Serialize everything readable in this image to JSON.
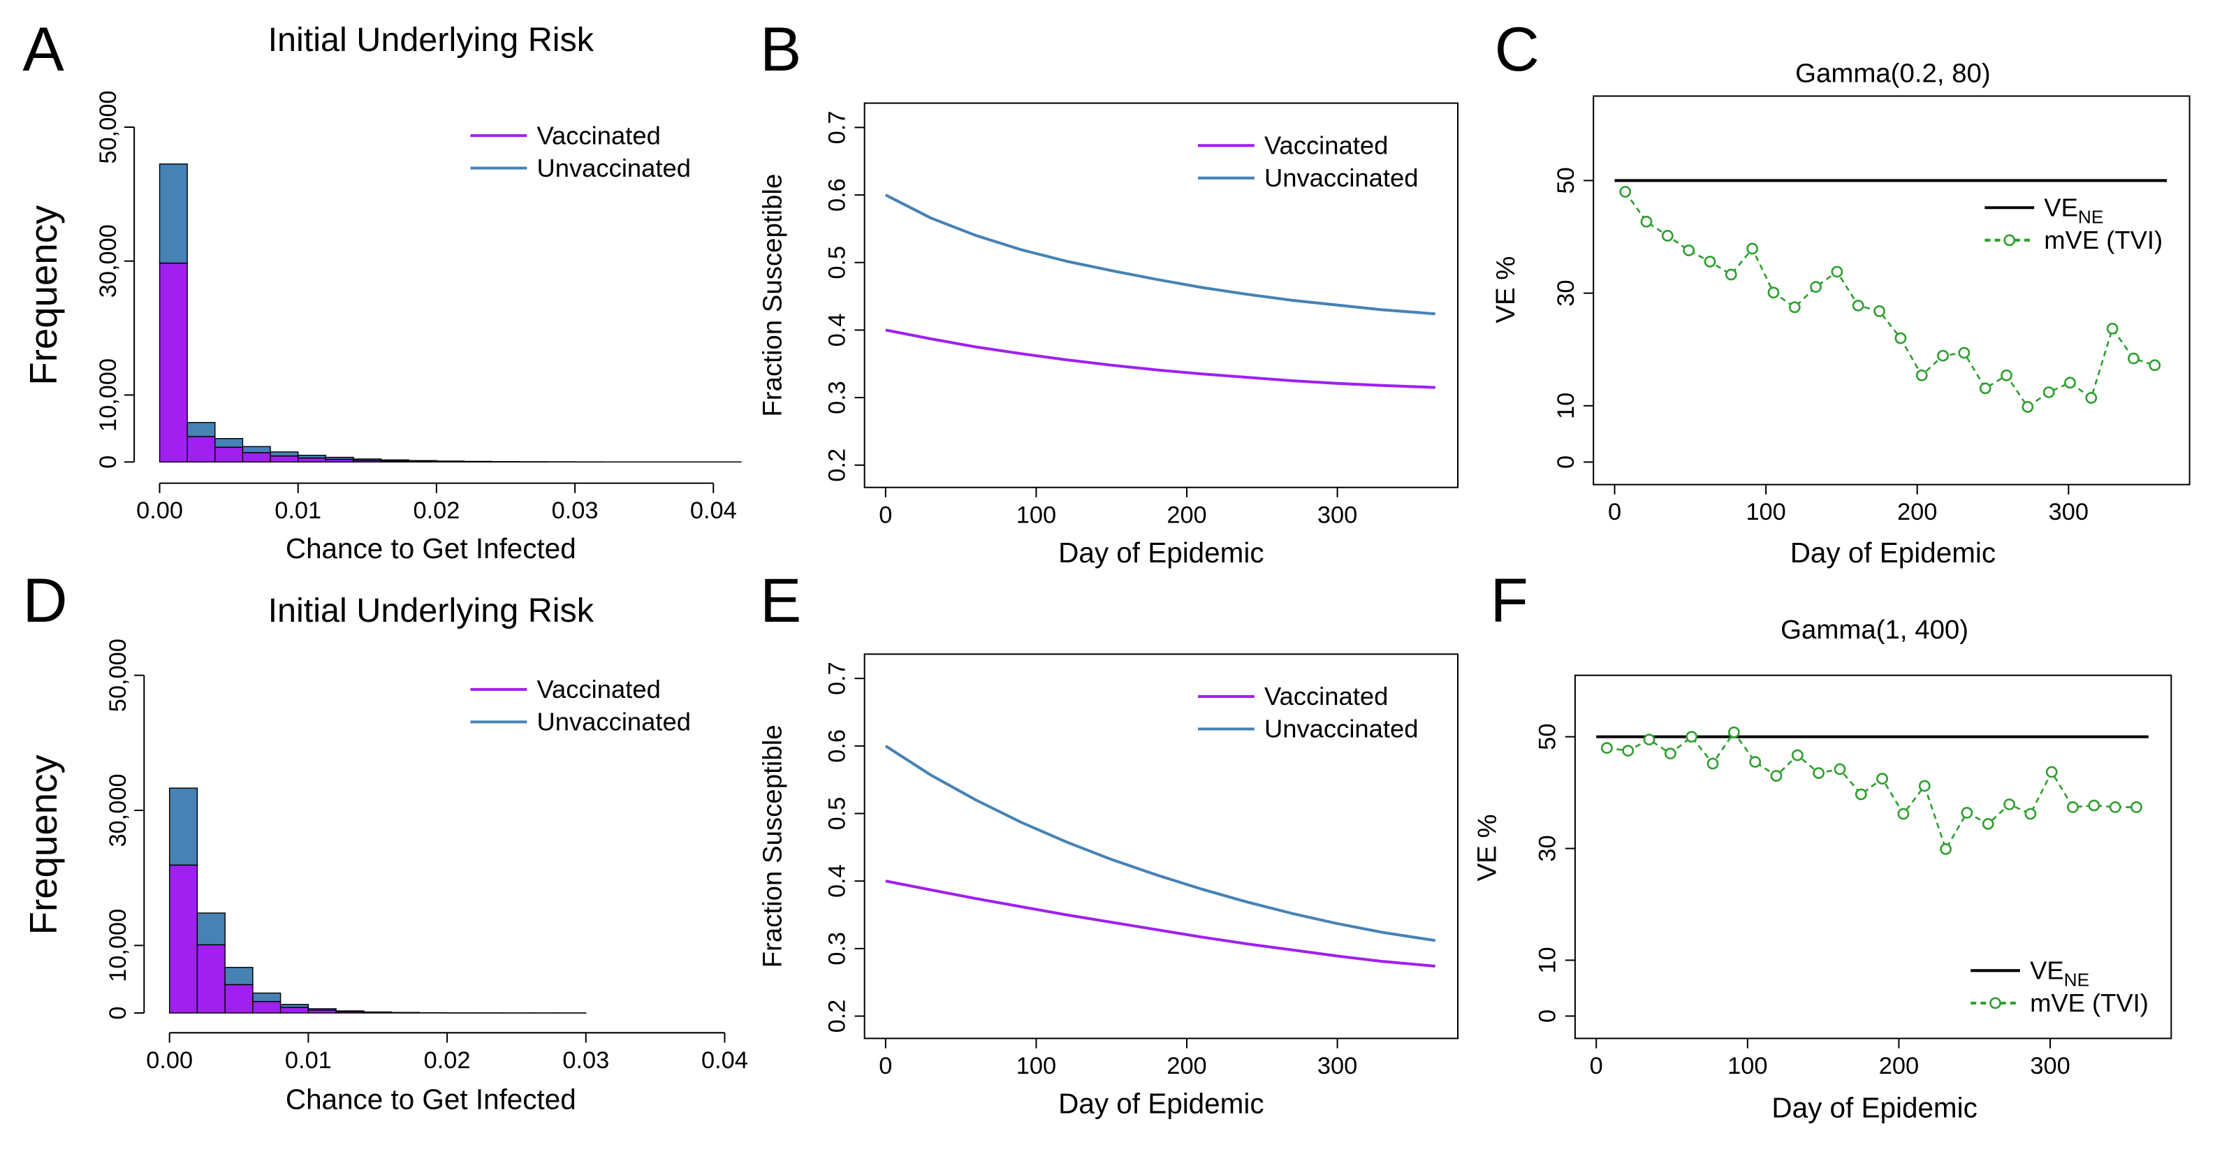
{
  "chart_data": [
    {
      "type": "histogram",
      "panel": "A",
      "title": "Initial Underlying Risk",
      "xlabel": "Chance to Get Infected",
      "ylabel": "Frequency",
      "bins": [
        0,
        0.002,
        0.004,
        0.006,
        0.008,
        0.01,
        0.012,
        0.014,
        0.016,
        0.018,
        0.02,
        0.022,
        0.024,
        0.026,
        0.028,
        0.03,
        0.032,
        0.034,
        0.036,
        0.038,
        0.04,
        0.042
      ],
      "series": [
        {
          "name": "Vaccinated",
          "color": "#a020f0",
          "values": [
            29700,
            3800,
            2200,
            1400,
            900,
            600,
            400,
            250,
            180,
            120,
            80,
            50,
            30,
            20,
            15,
            10,
            5,
            3,
            2,
            1,
            1
          ]
        },
        {
          "name": "Unvaccinated",
          "color": "#4682b4",
          "values": [
            14800,
            2100,
            1300,
            900,
            600,
            400,
            300,
            200,
            130,
            90,
            60,
            40,
            25,
            15,
            10,
            8,
            5,
            3,
            2,
            1,
            1
          ]
        }
      ],
      "stacked": true,
      "xlim": [
        0,
        0.04
      ],
      "xticks": [
        {
          "value": 0,
          "label": "0.00"
        },
        0.01,
        0.02,
        0.03,
        0.04
      ],
      "ylim": [
        0,
        50000
      ],
      "yticks": [
        0,
        {
          "value": 10000,
          "label": "10,000"
        },
        {
          "value": 30000,
          "label": "30,000"
        },
        {
          "value": 50000,
          "label": "50,000"
        }
      ],
      "legend": "top-right"
    },
    {
      "type": "line",
      "panel": "B",
      "xlabel": "Day of Epidemic",
      "ylabel": "Fraction Susceptible",
      "x": [
        0,
        30,
        60,
        90,
        120,
        150,
        180,
        210,
        240,
        270,
        300,
        330,
        365
      ],
      "series": [
        {
          "name": "Vaccinated",
          "color": "#a020f0",
          "values": [
            0.4,
            0.387,
            0.375,
            0.365,
            0.356,
            0.348,
            0.341,
            0.335,
            0.33,
            0.325,
            0.321,
            0.318,
            0.315
          ]
        },
        {
          "name": "Unvaccinated",
          "color": "#4682b4",
          "values": [
            0.6,
            0.566,
            0.54,
            0.519,
            0.502,
            0.488,
            0.475,
            0.463,
            0.453,
            0.444,
            0.437,
            0.43,
            0.424
          ]
        }
      ],
      "xlim": [
        -14,
        380
      ],
      "xticks": [
        0,
        100,
        200,
        300
      ],
      "ylim": [
        0.167,
        0.736
      ],
      "yticks": [
        0.2,
        0.3,
        0.4,
        0.5,
        0.6,
        0.7
      ],
      "legend": "top-right"
    },
    {
      "type": "line",
      "panel": "C",
      "title": "Gamma(0.2, 80)",
      "xlabel": "Day of Epidemic",
      "ylabel": "VE %",
      "series": [
        {
          "name": "VE",
          "subscript": "NE",
          "color": "#000000",
          "x": [
            0,
            365
          ],
          "values": [
            50,
            50
          ]
        },
        {
          "name": "mVE (TVI)",
          "color": "#2e9e2e",
          "marker": "circle",
          "dashed": true,
          "x": [
            7,
            21,
            35,
            49,
            63,
            77,
            91,
            105,
            119,
            133,
            147,
            161,
            175,
            189,
            203,
            217,
            231,
            245,
            259,
            273,
            287,
            301,
            315,
            329,
            343,
            357
          ],
          "values": [
            48.0,
            42.7,
            40.2,
            37.6,
            35.6,
            33.3,
            37.9,
            30.1,
            27.5,
            31.1,
            33.8,
            27.8,
            26.8,
            22.0,
            15.4,
            18.9,
            19.4,
            13.1,
            15.4,
            9.8,
            12.4,
            14.1,
            11.4,
            23.7,
            18.4,
            17.2
          ]
        }
      ],
      "xlim": [
        -14,
        380
      ],
      "xticks": [
        0,
        100,
        200,
        300
      ],
      "ylim": [
        -4,
        65
      ],
      "yticks": [
        0,
        10,
        30,
        50
      ],
      "legend": "top-right"
    },
    {
      "type": "histogram",
      "panel": "D",
      "title": "Initial Underlying Risk",
      "xlabel": "Chance to Get Infected",
      "ylabel": "Frequency",
      "bins": [
        0,
        0.002,
        0.004,
        0.006,
        0.008,
        0.01,
        0.012,
        0.014,
        0.016,
        0.018,
        0.02,
        0.022,
        0.024,
        0.026,
        0.028,
        0.03
      ],
      "series": [
        {
          "name": "Vaccinated",
          "color": "#a020f0",
          "values": [
            21900,
            10100,
            4200,
            1700,
            840,
            420,
            200,
            100,
            50,
            25,
            12,
            6,
            3,
            2,
            1
          ]
        },
        {
          "name": "Unvaccinated",
          "color": "#4682b4",
          "values": [
            11400,
            4700,
            2550,
            1250,
            430,
            210,
            110,
            50,
            25,
            12,
            6,
            3,
            2,
            1,
            1
          ]
        }
      ],
      "stacked": true,
      "xlim": [
        0,
        0.04
      ],
      "xticks": [
        {
          "value": 0,
          "label": "0.00"
        },
        0.01,
        0.02,
        0.03,
        0.04
      ],
      "ylim": [
        0,
        50000
      ],
      "yticks": [
        0,
        {
          "value": 10000,
          "label": "10,000"
        },
        {
          "value": 30000,
          "label": "30,000"
        },
        {
          "value": 50000,
          "label": "50,000"
        }
      ],
      "legend": "top-right"
    },
    {
      "type": "line",
      "panel": "E",
      "xlabel": "Day of Epidemic",
      "ylabel": "Fraction Susceptible",
      "x": [
        0,
        30,
        60,
        90,
        120,
        150,
        180,
        210,
        240,
        270,
        300,
        330,
        365
      ],
      "series": [
        {
          "name": "Vaccinated",
          "color": "#a020f0",
          "values": [
            0.4,
            0.387,
            0.374,
            0.362,
            0.35,
            0.339,
            0.328,
            0.317,
            0.307,
            0.298,
            0.289,
            0.281,
            0.274
          ]
        },
        {
          "name": "Unvaccinated",
          "color": "#4682b4",
          "values": [
            0.6,
            0.557,
            0.52,
            0.487,
            0.458,
            0.432,
            0.409,
            0.388,
            0.369,
            0.352,
            0.337,
            0.324,
            0.312
          ]
        }
      ],
      "xlim": [
        -14,
        380
      ],
      "xticks": [
        0,
        100,
        200,
        300
      ],
      "ylim": [
        0.167,
        0.736
      ],
      "yticks": [
        0.2,
        0.3,
        0.4,
        0.5,
        0.6,
        0.7
      ],
      "legend": "top-right"
    },
    {
      "type": "line",
      "panel": "F",
      "title": "Gamma(1, 400)",
      "xlabel": "Day of Epidemic",
      "ylabel": "VE %",
      "series": [
        {
          "name": "VE",
          "subscript": "NE",
          "color": "#000000",
          "x": [
            0,
            365
          ],
          "values": [
            50,
            50
          ]
        },
        {
          "name": "mVE (TVI)",
          "color": "#2e9e2e",
          "marker": "circle",
          "dashed": true,
          "x": [
            7,
            21,
            35,
            49,
            63,
            77,
            91,
            105,
            119,
            133,
            147,
            161,
            175,
            189,
            203,
            217,
            231,
            245,
            259,
            273,
            287,
            301,
            315,
            329,
            343,
            357
          ],
          "values": [
            48.0,
            47.5,
            49.5,
            47.0,
            50.0,
            45.2,
            50.8,
            45.5,
            43.0,
            46.7,
            43.5,
            44.2,
            39.7,
            42.5,
            36.2,
            41.2,
            29.9,
            36.4,
            34.4,
            37.9,
            36.2,
            43.7,
            37.4,
            37.7,
            37.4,
            37.4
          ]
        }
      ],
      "xlim": [
        -14,
        380
      ],
      "xticks": [
        0,
        100,
        200,
        300
      ],
      "ylim": [
        -4,
        61
      ],
      "yticks": [
        0,
        10,
        30,
        50
      ],
      "legend": "bottom-right"
    }
  ]
}
